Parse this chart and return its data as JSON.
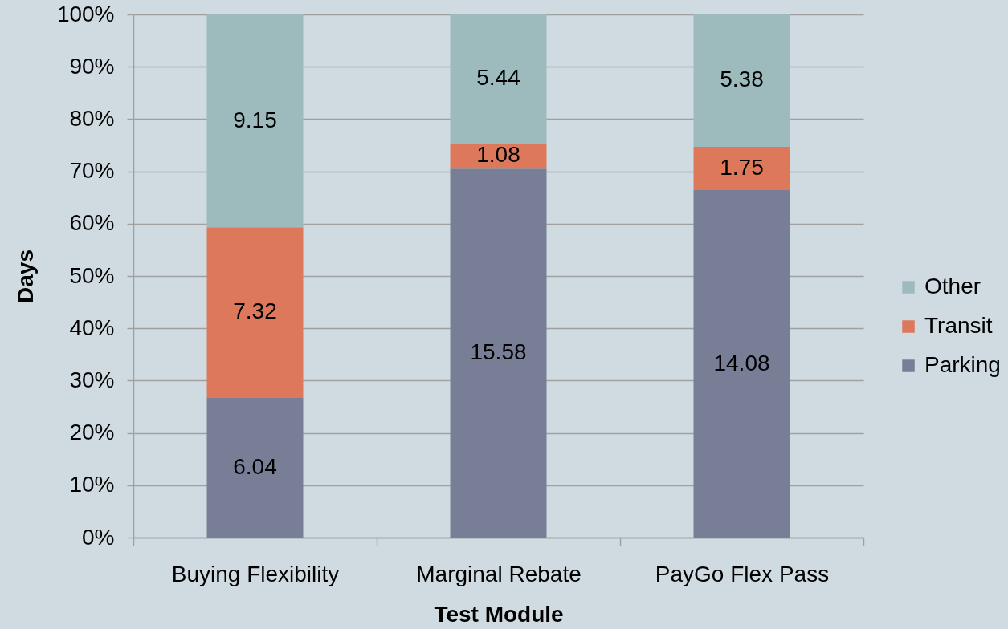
{
  "chart_data": {
    "type": "bar",
    "stacked": true,
    "xlabel": "Test Module",
    "ylabel": "Days",
    "categories": [
      "Buying Flexibility",
      "Marginal Rebate",
      "PayGo Flex Pass"
    ],
    "series": [
      {
        "name": "Parking",
        "color": "#777e96",
        "values": [
          26.8,
          70.5,
          66.4
        ]
      },
      {
        "name": "Transit",
        "color": "#dd785a",
        "values": [
          32.5,
          4.9,
          8.3
        ]
      },
      {
        "name": "Other",
        "color": "#9dbbbd",
        "values": [
          40.7,
          24.6,
          25.3
        ]
      }
    ],
    "annotations": [
      "6.04",
      "15.58",
      "14.08",
      "7.32",
      "1.08",
      "1.75",
      "9.15",
      "5.44",
      "5.38"
    ],
    "ylim": [
      0,
      100
    ],
    "yticks": [
      {
        "value": 0,
        "label": "0%"
      },
      {
        "value": 10,
        "label": "10%"
      },
      {
        "value": 20,
        "label": "20%"
      },
      {
        "value": 30,
        "label": "30%"
      },
      {
        "value": 40,
        "label": "40%"
      },
      {
        "value": 50,
        "label": "50%"
      },
      {
        "value": 60,
        "label": "60%"
      },
      {
        "value": 70,
        "label": "70%"
      },
      {
        "value": 80,
        "label": "80%"
      },
      {
        "value": 90,
        "label": "90%"
      },
      {
        "value": 100,
        "label": "100%"
      }
    ],
    "grid": "y",
    "legend": "right"
  }
}
